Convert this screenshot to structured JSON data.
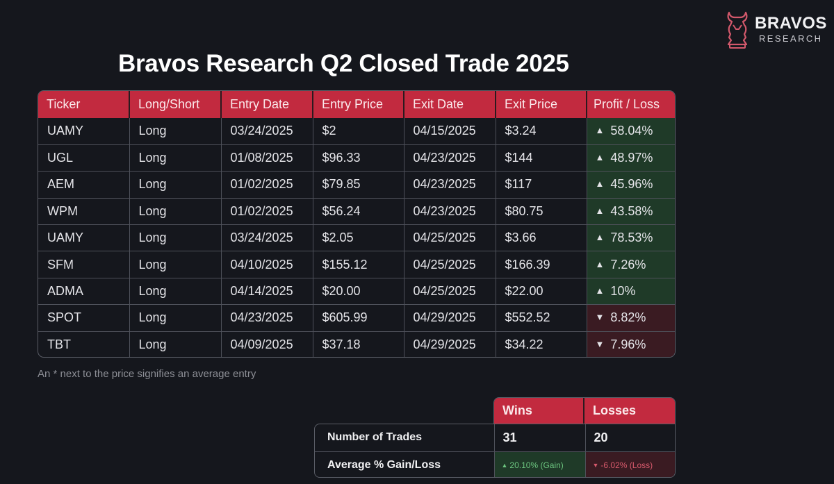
{
  "logo": {
    "brand": "BRAVOS",
    "sub": "RESEARCH"
  },
  "title": "Bravos Research Q2 Closed Trade 2025",
  "table": {
    "headers": [
      "Ticker",
      "Long/Short",
      "Entry Date",
      "Entry Price",
      "Exit Date",
      "Exit Price",
      "Profit / Loss"
    ],
    "rows": [
      {
        "ticker": "UAMY",
        "side": "Long",
        "entry_date": "03/24/2025",
        "entry_price": "$2",
        "exit_date": "04/15/2025",
        "exit_price": "$3.24",
        "pl": "58.04%",
        "pl_dir": "gain"
      },
      {
        "ticker": "UGL",
        "side": "Long",
        "entry_date": "01/08/2025",
        "entry_price": "$96.33",
        "exit_date": "04/23/2025",
        "exit_price": "$144",
        "pl": "48.97%",
        "pl_dir": "gain"
      },
      {
        "ticker": "AEM",
        "side": "Long",
        "entry_date": "01/02/2025",
        "entry_price": "$79.85",
        "exit_date": "04/23/2025",
        "exit_price": "$117",
        "pl": "45.96%",
        "pl_dir": "gain"
      },
      {
        "ticker": "WPM",
        "side": "Long",
        "entry_date": "01/02/2025",
        "entry_price": "$56.24",
        "exit_date": "04/23/2025",
        "exit_price": "$80.75",
        "pl": "43.58%",
        "pl_dir": "gain"
      },
      {
        "ticker": "UAMY",
        "side": "Long",
        "entry_date": "03/24/2025",
        "entry_price": "$2.05",
        "exit_date": "04/25/2025",
        "exit_price": "$3.66",
        "pl": "78.53%",
        "pl_dir": "gain"
      },
      {
        "ticker": "SFM",
        "side": "Long",
        "entry_date": "04/10/2025",
        "entry_price": "$155.12",
        "exit_date": "04/25/2025",
        "exit_price": "$166.39",
        "pl": "7.26%",
        "pl_dir": "gain"
      },
      {
        "ticker": "ADMA",
        "side": "Long",
        "entry_date": "04/14/2025",
        "entry_price": "$20.00",
        "exit_date": "04/25/2025",
        "exit_price": "$22.00",
        "pl": "10%",
        "pl_dir": "gain"
      },
      {
        "ticker": "SPOT",
        "side": "Long",
        "entry_date": "04/23/2025",
        "entry_price": "$605.99",
        "exit_date": "04/29/2025",
        "exit_price": "$552.52",
        "pl": "8.82%",
        "pl_dir": "loss"
      },
      {
        "ticker": "TBT",
        "side": "Long",
        "entry_date": "04/09/2025",
        "entry_price": "$37.18",
        "exit_date": "04/29/2025",
        "exit_price": "$34.22",
        "pl": "7.96%",
        "pl_dir": "loss"
      }
    ]
  },
  "footnote": "An * next to the price signifies an average entry",
  "summary": {
    "headers": [
      "Wins",
      "Losses"
    ],
    "rows": [
      {
        "label": "Number of Trades",
        "wins": "31",
        "losses": "20"
      },
      {
        "label": "Average % Gain/Loss",
        "wins": "20.10% (Gain)",
        "losses": "-6.02% (Loss)"
      }
    ]
  },
  "colors": {
    "header_red": "#c22a3f",
    "gain_green": "#6cc57f",
    "loss_red": "#d85a6c",
    "background": "#15171d"
  },
  "icons": {
    "gain": "triangle-up-icon",
    "loss": "triangle-down-icon",
    "logo": "bull-knight-logo-icon"
  }
}
